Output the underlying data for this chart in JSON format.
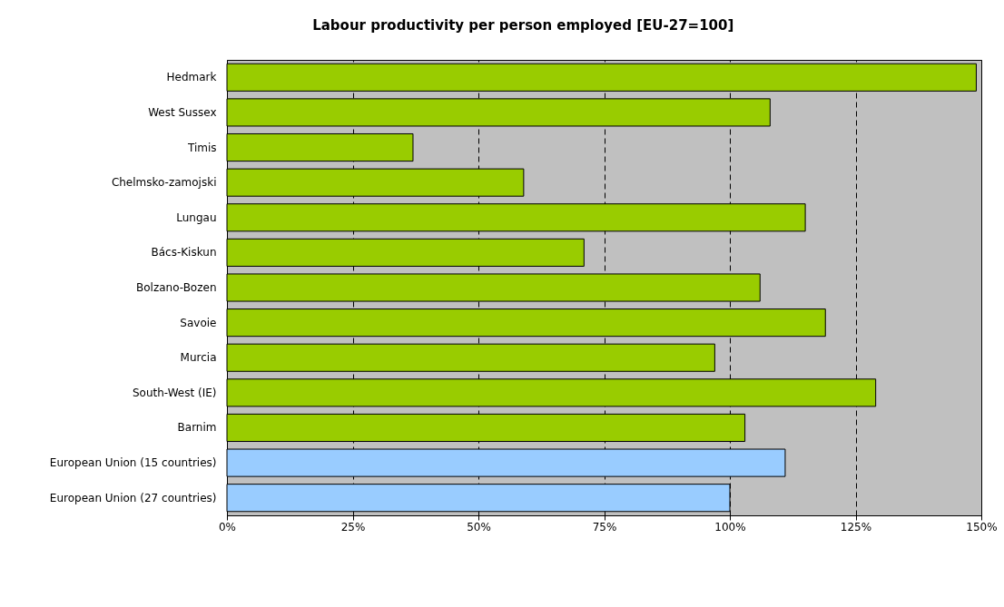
{
  "chart_data": {
    "type": "bar",
    "orientation": "horizontal",
    "title": "Labour productivity per person employed [EU-27=100]",
    "categories": [
      "Hedmark",
      "West Sussex",
      "Timis",
      "Chelmsko-zamojski",
      "Lungau",
      "Bács-Kiskun",
      "Bolzano-Bozen",
      "Savoie",
      "Murcia",
      "South-West (IE)",
      "Barnim",
      "European Union (15 countries)",
      "European Union (27 countries)"
    ],
    "values": [
      149,
      108,
      37,
      59,
      115,
      71,
      106,
      119,
      97,
      129,
      103,
      111,
      100
    ],
    "colors": [
      "#99cc00",
      "#99cc00",
      "#99cc00",
      "#99cc00",
      "#99cc00",
      "#99cc00",
      "#99cc00",
      "#99cc00",
      "#99cc00",
      "#99cc00",
      "#99cc00",
      "#99ccff",
      "#99ccff"
    ],
    "xlim": [
      0,
      150
    ],
    "xticks": [
      {
        "value": 0,
        "label": "0%"
      },
      {
        "value": 25,
        "label": "25%"
      },
      {
        "value": 50,
        "label": "50%"
      },
      {
        "value": 75,
        "label": "75%"
      },
      {
        "value": 100,
        "label": "100%"
      },
      {
        "value": 125,
        "label": "125%"
      },
      {
        "value": 150,
        "label": "150%"
      }
    ],
    "grid": "x"
  }
}
